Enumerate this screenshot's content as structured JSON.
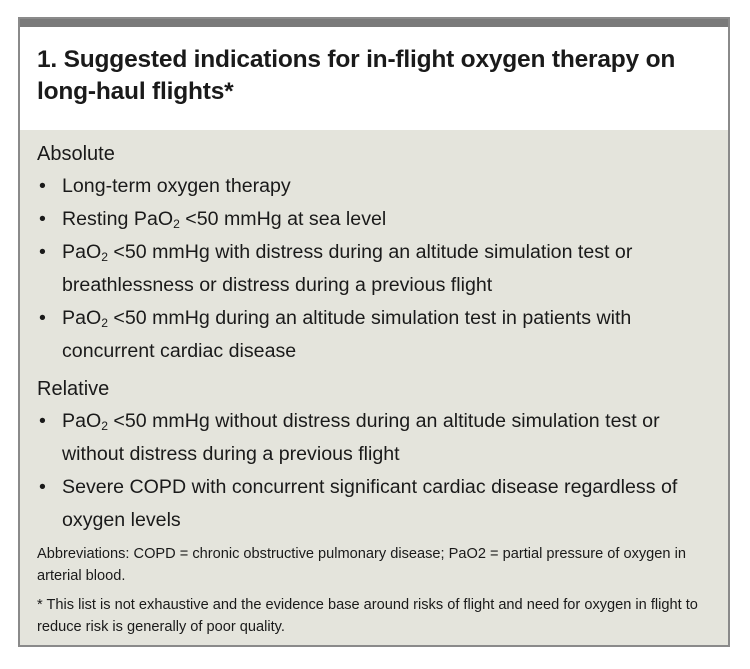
{
  "box": {
    "title": "1. Suggested indications for in-flight oxygen therapy on long-haul flights*"
  },
  "sections": [
    {
      "heading": "Absolute",
      "items": [
        {
          "pre": "Long-term oxygen therapy",
          "sub": "",
          "post": ""
        },
        {
          "pre": "Resting PaO",
          "sub": "2",
          "post": " <50 mmHg at sea level"
        },
        {
          "pre": "PaO",
          "sub": "2",
          "post": " <50 mmHg with distress during an altitude simulation test or breathlessness or distress during a previous flight"
        },
        {
          "pre": "PaO",
          "sub": "2",
          "post": " <50 mmHg during an altitude simulation test in patients with concurrent cardiac disease"
        }
      ]
    },
    {
      "heading": "Relative",
      "items": [
        {
          "pre": "PaO",
          "sub": "2",
          "post": " <50 mmHg without distress during an altitude simulation test or without distress during a previous flight"
        },
        {
          "pre": "Severe COPD with concurrent significant cardiac disease regardless of oxygen levels",
          "sub": "",
          "post": ""
        }
      ]
    }
  ],
  "bullet_char": "•",
  "notes": {
    "abbreviations": "Abbreviations: COPD = chronic obstructive pulmonary disease; PaO2 = partial pressure of oxygen in arterial blood.",
    "footnote": "* This list is not exhaustive and the evidence base around risks of flight and need for oxygen in flight to reduce risk is generally of poor quality."
  },
  "colors": {
    "top_bar": "#7a7a7a",
    "border": "#8a8a8a",
    "body_background": "#e4e4dc",
    "title_background": "#ffffff",
    "text": "#1a1a1a"
  }
}
